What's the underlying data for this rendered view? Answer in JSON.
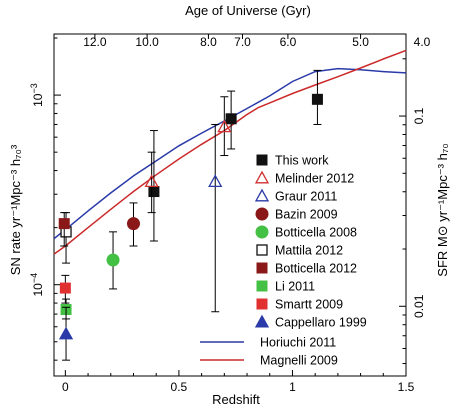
{
  "chart_data": {
    "type": "scatter",
    "title": "",
    "top_axis": {
      "label": "Age of Universe (Gyr)",
      "ticks": [
        {
          "label": "12.0",
          "z": 0.13
        },
        {
          "label": "10.0",
          "z": 0.36
        },
        {
          "label": "8.0",
          "z": 0.63
        },
        {
          "label": "7.0",
          "z": 0.78
        },
        {
          "label": "6.0",
          "z": 0.98
        },
        {
          "label": "5.0",
          "z": 1.3
        }
      ]
    },
    "xaxis": {
      "label": "Redshift",
      "range": [
        -0.05,
        1.5
      ],
      "ticks": [
        0,
        0.5,
        1,
        1.5
      ],
      "tick_labels": [
        "0",
        "0.5",
        "1",
        "1.5"
      ]
    },
    "yaxis_left": {
      "label": "SN rate yr⁻¹Mpc⁻³ h₇₀³",
      "scale": "log",
      "range": [
        3.3e-05,
        0.0021
      ],
      "labeled_ticks": [
        {
          "value": 0.0001,
          "base": "10",
          "exp": "−4"
        },
        {
          "value": 0.001,
          "base": "10",
          "exp": "−3"
        }
      ]
    },
    "yaxis_right": {
      "label": "SFR M⊙ yr⁻¹Mpc⁻³ h₇₀",
      "scale": "log",
      "range": [
        0.0043,
        0.27
      ],
      "labeled_ticks": [
        {
          "value": 0.01,
          "label": "0.01"
        },
        {
          "value": 0.1,
          "label": "0.1"
        }
      ]
    },
    "series": [
      {
        "name": "This work",
        "marker": "square",
        "fill": "#111111",
        "stroke": "#111111",
        "points": [
          {
            "x": 0.39,
            "y": 0.00031,
            "lo": 0.00017,
            "hi": 0.00065
          },
          {
            "x": 0.73,
            "y": 0.00075,
            "lo": 0.00052,
            "hi": 0.00105
          },
          {
            "x": 1.11,
            "y": 0.00095,
            "lo": 0.0007,
            "hi": 0.00135
          }
        ]
      },
      {
        "name": "Melinder 2012",
        "marker": "triangle-up-open",
        "fill": "none",
        "stroke": "#d03030",
        "points": [
          {
            "x": 0.38,
            "y": 0.00035,
            "lo": 0.00024,
            "hi": 0.0005
          },
          {
            "x": 0.7,
            "y": 0.00068,
            "lo": 0.00048,
            "hi": 0.00098
          }
        ]
      },
      {
        "name": "Graur 2011",
        "marker": "triangle-up-open",
        "fill": "none",
        "stroke": "#2a3aa8",
        "points": [
          {
            "x": 0.66,
            "y": 0.00035,
            "lo": 7.2e-05,
            "hi": 0.0007
          }
        ]
      },
      {
        "name": "Bazin 2009",
        "marker": "circle",
        "fill": "#8a1818",
        "stroke": "#8a1818",
        "points": [
          {
            "x": 0.3,
            "y": 0.00021,
            "lo": 0.00016,
            "hi": 0.00027
          }
        ]
      },
      {
        "name": "Botticella 2008",
        "marker": "circle",
        "fill": "#44c044",
        "stroke": "#44c044",
        "points": [
          {
            "x": 0.21,
            "y": 0.000135,
            "lo": 9.5e-05,
            "hi": 0.00019
          }
        ]
      },
      {
        "name": "Mattila 2012",
        "marker": "square-open",
        "fill": "none",
        "stroke": "#111111",
        "points": [
          {
            "x": 0.003,
            "y": 0.00019,
            "lo": 0.00013,
            "hi": 0.00024
          }
        ]
      },
      {
        "name": "Botticella 2012",
        "marker": "square",
        "fill": "#8a1818",
        "stroke": "#8a1818",
        "points": [
          {
            "x": -0.005,
            "y": 0.00021,
            "lo": 0.00016,
            "hi": 0.00024
          }
        ]
      },
      {
        "name": "Li 2011",
        "marker": "square",
        "fill": "#44c044",
        "stroke": "#44c044",
        "points": [
          {
            "x": 0.003,
            "y": 7.4e-05,
            "lo": 6.6e-05,
            "hi": 8.4e-05
          }
        ]
      },
      {
        "name": "Smartt 2009",
        "marker": "square",
        "fill": "#e03030",
        "stroke": "#e03030",
        "points": [
          {
            "x": 0.0,
            "y": 9.6e-05,
            "lo": 8e-05,
            "hi": 0.000112
          }
        ]
      },
      {
        "name": "Cappellaro 1999",
        "marker": "triangle-up",
        "fill": "#2a3aa8",
        "stroke": "#2a3aa8",
        "points": [
          {
            "x": 0.003,
            "y": 5.5e-05,
            "lo": 4e-05,
            "hi": 7.6e-05
          }
        ]
      }
    ],
    "curves": [
      {
        "name": "Horiuchi 2011",
        "color": "#2a3aa8",
        "x": [
          -0.05,
          0.0,
          0.1,
          0.2,
          0.3,
          0.4,
          0.5,
          0.6,
          0.7,
          0.8,
          0.9,
          1.0,
          1.1,
          1.2,
          1.3,
          1.4,
          1.5
        ],
        "y": [
          0.000175,
          0.000195,
          0.000245,
          0.000305,
          0.000375,
          0.00045,
          0.00054,
          0.00063,
          0.00073,
          0.00085,
          0.00099,
          0.00118,
          0.00133,
          0.00138,
          0.00136,
          0.00133,
          0.00131
        ]
      },
      {
        "name": "Magnelli 2009",
        "color": "#cc2a2a",
        "x": [
          -0.05,
          0.0,
          0.1,
          0.2,
          0.3,
          0.4,
          0.5,
          0.6,
          0.7,
          0.8,
          0.85,
          0.9,
          1.0,
          1.1,
          1.2,
          1.3,
          1.4,
          1.5
        ],
        "y": [
          0.000145,
          0.00016,
          0.0002,
          0.00025,
          0.00031,
          0.00038,
          0.00046,
          0.00055,
          0.00065,
          0.00079,
          0.00086,
          0.00091,
          0.00102,
          0.00113,
          0.00125,
          0.00139,
          0.00155,
          0.00172
        ]
      }
    ],
    "legend": {
      "placement": "lower-right inside"
    }
  }
}
